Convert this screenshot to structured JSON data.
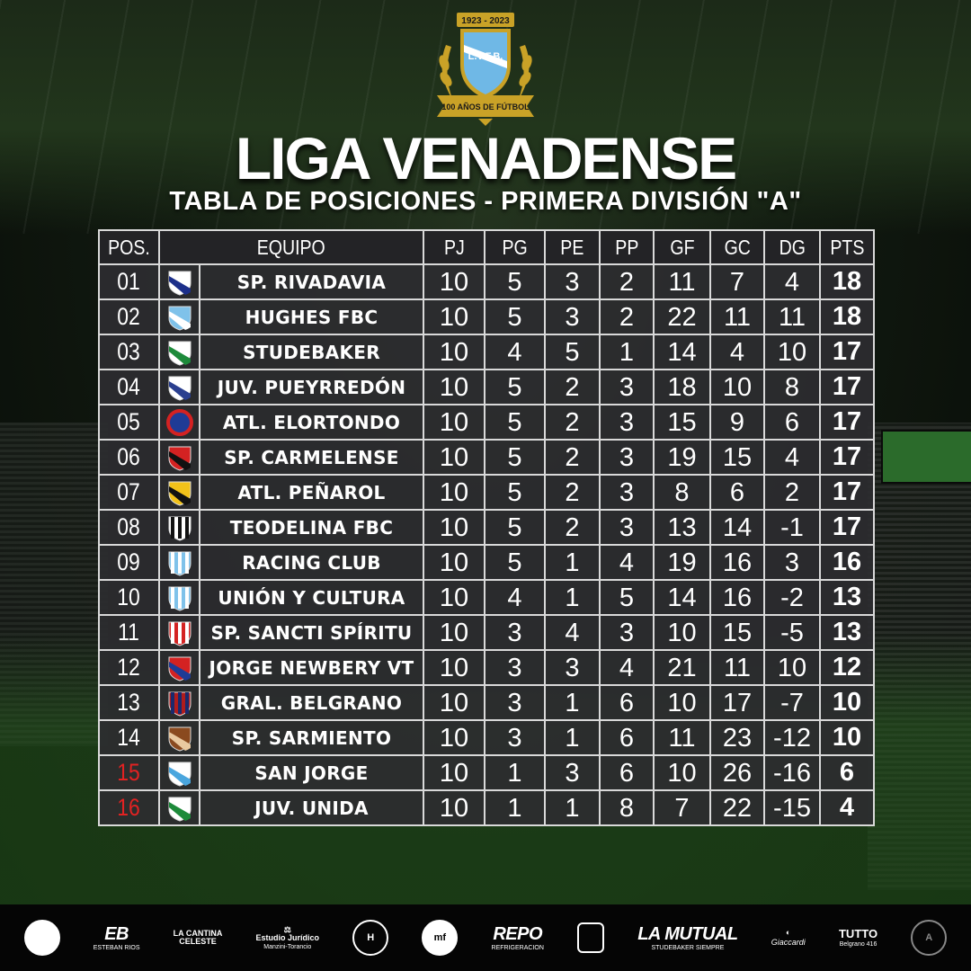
{
  "crest": {
    "years": "1923 - 2023",
    "initials": "L.V.F.B.",
    "ribbon": "100 AÑOS DE FÚTBOL",
    "colors": {
      "gold": "#c9a227",
      "sky": "#6fb8e6"
    }
  },
  "title": "LIGA VENADENSE",
  "subtitle": "TABLA DE POSICIONES - PRIMERA DIVISIÓN \"A\"",
  "table": {
    "headers": [
      "POS.",
      "EQUIPO",
      "PJ",
      "PG",
      "PE",
      "PP",
      "GF",
      "GC",
      "DG",
      "PTS"
    ],
    "rows": [
      {
        "pos": "01",
        "team": "SP. RIVADAVIA",
        "pj": "10",
        "pg": "5",
        "pe": "3",
        "pp": "2",
        "gf": "11",
        "gc": "7",
        "dg": "4",
        "pts": "18",
        "badge": {
          "shape": "shield",
          "c1": "#ffffff",
          "c2": "#1c2f8a"
        },
        "relegation": false
      },
      {
        "pos": "02",
        "team": "HUGHES FBC",
        "pj": "10",
        "pg": "5",
        "pe": "3",
        "pp": "2",
        "gf": "22",
        "gc": "11",
        "dg": "11",
        "pts": "18",
        "badge": {
          "shape": "shield",
          "c1": "#7fc2ea",
          "c2": "#ffffff"
        },
        "relegation": false
      },
      {
        "pos": "03",
        "team": "STUDEBAKER",
        "pj": "10",
        "pg": "4",
        "pe": "5",
        "pp": "1",
        "gf": "14",
        "gc": "4",
        "dg": "10",
        "pts": "17",
        "badge": {
          "shape": "shield",
          "c1": "#ffffff",
          "c2": "#1d8a3a"
        },
        "relegation": false
      },
      {
        "pos": "04",
        "team": "JUV. PUEYRREDÓN",
        "pj": "10",
        "pg": "5",
        "pe": "2",
        "pp": "3",
        "gf": "18",
        "gc": "10",
        "dg": "8",
        "pts": "17",
        "badge": {
          "shape": "shield",
          "c1": "#ffffff",
          "c2": "#2a3f8f"
        },
        "relegation": false
      },
      {
        "pos": "05",
        "team": "ATL. ELORTONDO",
        "pj": "10",
        "pg": "5",
        "pe": "2",
        "pp": "3",
        "gf": "15",
        "gc": "9",
        "dg": "6",
        "pts": "17",
        "badge": {
          "shape": "circle",
          "c1": "#d42222",
          "c2": "#1f3b96"
        },
        "relegation": false
      },
      {
        "pos": "06",
        "team": "SP. CARMELENSE",
        "pj": "10",
        "pg": "5",
        "pe": "2",
        "pp": "3",
        "gf": "19",
        "gc": "15",
        "dg": "4",
        "pts": "17",
        "badge": {
          "shape": "shield",
          "c1": "#d42222",
          "c2": "#111111"
        },
        "relegation": false
      },
      {
        "pos": "07",
        "team": "ATL. PEÑAROL",
        "pj": "10",
        "pg": "5",
        "pe": "2",
        "pp": "3",
        "gf": "8",
        "gc": "6",
        "dg": "2",
        "pts": "17",
        "badge": {
          "shape": "shield",
          "c1": "#f2c21a",
          "c2": "#111111"
        },
        "relegation": false
      },
      {
        "pos": "08",
        "team": "TEODELINA FBC",
        "pj": "10",
        "pg": "5",
        "pe": "2",
        "pp": "3",
        "gf": "13",
        "gc": "14",
        "dg": "-1",
        "pts": "17",
        "badge": {
          "shape": "stripes",
          "c1": "#ffffff",
          "c2": "#111111"
        },
        "relegation": false
      },
      {
        "pos": "09",
        "team": "RACING CLUB",
        "pj": "10",
        "pg": "5",
        "pe": "1",
        "pp": "4",
        "gf": "19",
        "gc": "16",
        "dg": "3",
        "pts": "16",
        "badge": {
          "shape": "stripes",
          "c1": "#7fc2ea",
          "c2": "#ffffff"
        },
        "relegation": false
      },
      {
        "pos": "10",
        "team": "UNIÓN Y CULTURA",
        "pj": "10",
        "pg": "4",
        "pe": "1",
        "pp": "5",
        "gf": "14",
        "gc": "16",
        "dg": "-2",
        "pts": "13",
        "badge": {
          "shape": "stripes",
          "c1": "#7fc2ea",
          "c2": "#ffffff"
        },
        "relegation": false
      },
      {
        "pos": "11",
        "team": "SP. SANCTI SPÍRITU",
        "pj": "10",
        "pg": "3",
        "pe": "4",
        "pp": "3",
        "gf": "10",
        "gc": "15",
        "dg": "-5",
        "pts": "13",
        "badge": {
          "shape": "stripes",
          "c1": "#d42222",
          "c2": "#ffffff"
        },
        "relegation": false
      },
      {
        "pos": "12",
        "team": "JORGE NEWBERY VT",
        "pj": "10",
        "pg": "3",
        "pe": "3",
        "pp": "4",
        "gf": "21",
        "gc": "11",
        "dg": "10",
        "pts": "12",
        "badge": {
          "shape": "shield",
          "c1": "#d42222",
          "c2": "#1f3b96"
        },
        "relegation": false
      },
      {
        "pos": "13",
        "team": "GRAL. BELGRANO",
        "pj": "10",
        "pg": "3",
        "pe": "1",
        "pp": "6",
        "gf": "10",
        "gc": "17",
        "dg": "-7",
        "pts": "10",
        "badge": {
          "shape": "stripes",
          "c1": "#b01c1c",
          "c2": "#1a2a6e"
        },
        "relegation": false
      },
      {
        "pos": "14",
        "team": "SP. SARMIENTO",
        "pj": "10",
        "pg": "3",
        "pe": "1",
        "pp": "6",
        "gf": "11",
        "gc": "23",
        "dg": "-12",
        "pts": "10",
        "badge": {
          "shape": "shield",
          "c1": "#8a4a1f",
          "c2": "#e9c9a0"
        },
        "relegation": false
      },
      {
        "pos": "15",
        "team": "SAN JORGE",
        "pj": "10",
        "pg": "1",
        "pe": "3",
        "pp": "6",
        "gf": "10",
        "gc": "26",
        "dg": "-16",
        "pts": "6",
        "badge": {
          "shape": "shield",
          "c1": "#ffffff",
          "c2": "#4aa6de"
        },
        "relegation": true
      },
      {
        "pos": "16",
        "team": "JUV. UNIDA",
        "pj": "10",
        "pg": "1",
        "pe": "1",
        "pp": "8",
        "gf": "7",
        "gc": "22",
        "dg": "-15",
        "pts": "4",
        "badge": {
          "shape": "shield",
          "c1": "#ffffff",
          "c2": "#1d8a3a"
        },
        "relegation": true
      }
    ],
    "relegation_color": "#e22222"
  },
  "sponsors": {
    "s1": "ESTEBAN RIOS",
    "s2_a": "LA CANTINA",
    "s2_b": "CELESTE",
    "s3_a": "Estudio Jurídico",
    "s3_b": "Manzini-Torancio",
    "s6": "REPO",
    "s6_b": "REFRIGERACION",
    "s8_a": "LA MUTUAL",
    "s8_b": "STUDEBAKER SIEMPRE",
    "s9": "Giaccardi",
    "s10_a": "TUTTO",
    "s10_b": "Belgrano 416"
  }
}
